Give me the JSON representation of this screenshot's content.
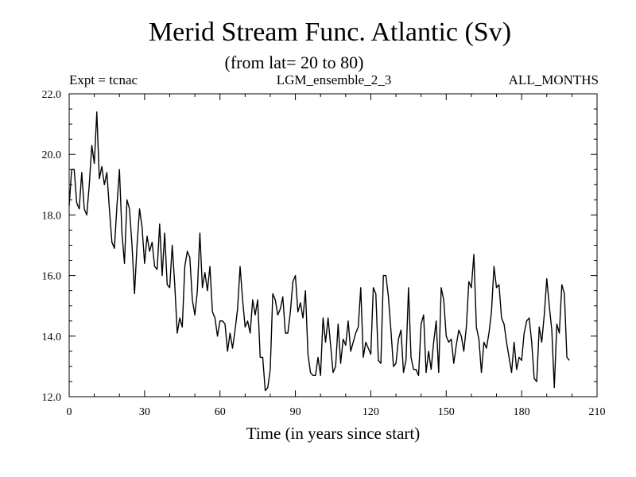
{
  "chart_data": {
    "type": "line",
    "title": "Merid Stream Func. Atlantic (Sv)",
    "subtitle": "(from lat= 20 to 80)",
    "annotations": {
      "left": "Expt = tcnac",
      "center": "LGM_ensemble_2_3",
      "right": "ALL_MONTHS"
    },
    "xlabel": "Time (in years since start)",
    "ylabel": "",
    "xlim": [
      0,
      210
    ],
    "ylim": [
      12.0,
      22.0
    ],
    "xticks": [
      0,
      30,
      60,
      90,
      120,
      150,
      180,
      210
    ],
    "xtick_labels": [
      "0",
      "30",
      "60",
      "90",
      "120",
      "150",
      "180",
      "210"
    ],
    "yticks": [
      12.0,
      14.0,
      16.0,
      18.0,
      20.0,
      22.0
    ],
    "ytick_labels": [
      "12.0",
      "14.0",
      "16.0",
      "18.0",
      "20.0",
      "22.0"
    ],
    "grid": false,
    "series": [
      {
        "name": "Merid Stream Func. Atlantic",
        "x": [
          0,
          1,
          2,
          3,
          4,
          5,
          6,
          7,
          8,
          9,
          10,
          11,
          12,
          13,
          14,
          15,
          16,
          17,
          18,
          19,
          20,
          21,
          22,
          23,
          24,
          25,
          26,
          27,
          28,
          29,
          30,
          31,
          32,
          33,
          34,
          35,
          36,
          37,
          38,
          39,
          40,
          41,
          42,
          43,
          44,
          45,
          46,
          47,
          48,
          49,
          50,
          51,
          52,
          53,
          54,
          55,
          56,
          57,
          58,
          59,
          60,
          61,
          62,
          63,
          64,
          65,
          66,
          67,
          68,
          69,
          70,
          71,
          72,
          73,
          74,
          75,
          76,
          77,
          78,
          79,
          80,
          81,
          82,
          83,
          84,
          85,
          86,
          87,
          88,
          89,
          90,
          91,
          92,
          93,
          94,
          95,
          96,
          97,
          98,
          99,
          100,
          101,
          102,
          103,
          104,
          105,
          106,
          107,
          108,
          109,
          110,
          111,
          112,
          113,
          114,
          115,
          116,
          117,
          118,
          119,
          120,
          121,
          122,
          123,
          124,
          125,
          126,
          127,
          128,
          129,
          130,
          131,
          132,
          133,
          134,
          135,
          136,
          137,
          138,
          139,
          140,
          141,
          142,
          143,
          144,
          145,
          146,
          147,
          148,
          149,
          150,
          151,
          152,
          153,
          154,
          155,
          156,
          157,
          158,
          159,
          160,
          161,
          162,
          163,
          164,
          165,
          166,
          167,
          168,
          169,
          170,
          171,
          172,
          173,
          174,
          175,
          176,
          177,
          178,
          179,
          180,
          181,
          182,
          183,
          184,
          185,
          186,
          187,
          188,
          189,
          190,
          191,
          192,
          193,
          194,
          195,
          196,
          197,
          198,
          199
        ],
        "values": [
          18.3,
          19.5,
          19.5,
          18.4,
          18.2,
          19.4,
          18.2,
          18.0,
          19.0,
          20.3,
          19.7,
          21.4,
          19.2,
          19.6,
          19.0,
          19.4,
          18.2,
          17.1,
          16.9,
          18.3,
          19.5,
          17.4,
          16.4,
          18.5,
          18.2,
          17.0,
          15.4,
          17.0,
          18.2,
          17.6,
          16.4,
          17.3,
          16.8,
          17.1,
          16.3,
          16.2,
          17.7,
          16.0,
          17.4,
          15.7,
          15.6,
          17.0,
          15.7,
          14.1,
          14.6,
          14.3,
          16.3,
          16.8,
          16.6,
          15.2,
          14.7,
          15.5,
          17.4,
          15.6,
          16.1,
          15.5,
          16.3,
          14.8,
          14.6,
          14.0,
          14.5,
          14.5,
          14.4,
          13.5,
          14.1,
          13.6,
          14.2,
          14.9,
          16.3,
          15.2,
          14.3,
          14.5,
          14.1,
          15.2,
          14.7,
          15.2,
          13.3,
          13.3,
          12.2,
          12.3,
          12.9,
          15.4,
          15.2,
          14.7,
          14.9,
          15.3,
          14.1,
          14.1,
          14.8,
          15.8,
          16.0,
          14.8,
          15.1,
          14.6,
          15.5,
          13.4,
          12.8,
          12.7,
          12.7,
          13.3,
          12.7,
          14.6,
          13.8,
          14.6,
          13.7,
          12.8,
          13.0,
          14.4,
          13.1,
          13.9,
          13.7,
          14.5,
          13.5,
          13.8,
          14.1,
          14.3,
          15.6,
          13.3,
          13.8,
          13.6,
          13.4,
          15.6,
          15.4,
          13.2,
          13.1,
          16.0,
          16.0,
          15.3,
          14.2,
          13.0,
          13.1,
          13.9,
          14.2,
          12.8,
          13.2,
          15.6,
          13.3,
          12.9,
          12.9,
          12.7,
          14.4,
          14.7,
          12.8,
          13.5,
          12.9,
          13.8,
          14.5,
          12.8,
          15.6,
          15.2,
          14.0,
          13.8,
          13.9,
          13.1,
          13.7,
          14.2,
          14.0,
          13.5,
          14.3,
          15.8,
          15.6,
          16.7,
          14.3,
          13.9,
          12.8,
          13.8,
          13.6,
          14.1,
          14.8,
          16.3,
          15.6,
          15.7,
          14.6,
          14.4,
          13.8,
          13.3,
          12.8,
          13.8,
          12.9,
          13.3,
          13.2,
          14.1,
          14.5,
          14.6,
          13.8,
          12.6,
          12.5,
          14.3,
          13.8,
          14.7,
          15.9,
          15.0,
          14.2,
          12.3,
          14.4,
          14.1,
          15.7,
          15.4,
          13.3,
          13.2
        ]
      }
    ]
  }
}
